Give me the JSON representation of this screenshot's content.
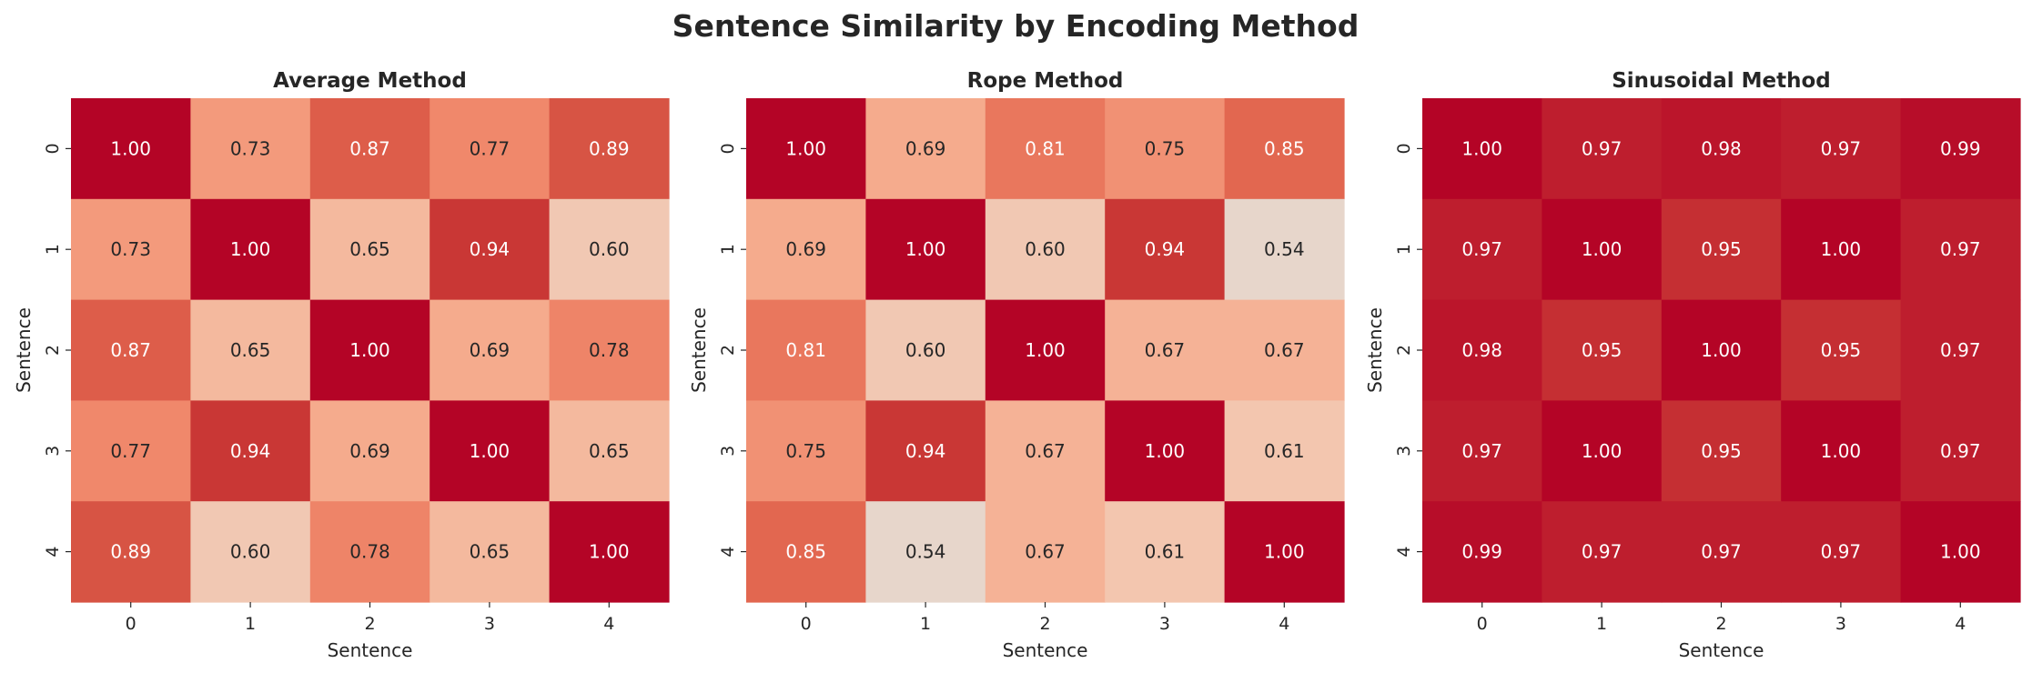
{
  "title": "Sentence Similarity by Encoding Method",
  "chart_data": [
    {
      "type": "heatmap",
      "title": "Average Method",
      "xlabel": "Sentence",
      "ylabel": "Sentence",
      "x": [
        "0",
        "1",
        "2",
        "3",
        "4"
      ],
      "y": [
        "0",
        "1",
        "2",
        "3",
        "4"
      ],
      "values": [
        [
          1.0,
          0.73,
          0.87,
          0.77,
          0.89
        ],
        [
          0.73,
          1.0,
          0.65,
          0.94,
          0.6
        ],
        [
          0.87,
          0.65,
          1.0,
          0.69,
          0.78
        ],
        [
          0.77,
          0.94,
          0.69,
          1.0,
          0.65
        ],
        [
          0.89,
          0.6,
          0.78,
          0.65,
          1.0
        ]
      ],
      "colorbar": false
    },
    {
      "type": "heatmap",
      "title": "Rope Method",
      "xlabel": "Sentence",
      "ylabel": "Sentence",
      "x": [
        "0",
        "1",
        "2",
        "3",
        "4"
      ],
      "y": [
        "0",
        "1",
        "2",
        "3",
        "4"
      ],
      "values": [
        [
          1.0,
          0.69,
          0.81,
          0.75,
          0.85
        ],
        [
          0.69,
          1.0,
          0.6,
          0.94,
          0.54
        ],
        [
          0.81,
          0.6,
          1.0,
          0.67,
          0.67
        ],
        [
          0.75,
          0.94,
          0.67,
          1.0,
          0.61
        ],
        [
          0.85,
          0.54,
          0.67,
          0.61,
          1.0
        ]
      ],
      "colorbar": false
    },
    {
      "type": "heatmap",
      "title": "Sinusoidal Method",
      "xlabel": "Sentence",
      "ylabel": "Sentence",
      "x": [
        "0",
        "1",
        "2",
        "3",
        "4"
      ],
      "y": [
        "0",
        "1",
        "2",
        "3",
        "4"
      ],
      "values": [
        [
          1.0,
          0.97,
          0.98,
          0.97,
          0.99
        ],
        [
          0.97,
          1.0,
          0.95,
          1.0,
          0.97
        ],
        [
          0.98,
          0.95,
          1.0,
          0.95,
          0.97
        ],
        [
          0.97,
          1.0,
          0.95,
          1.0,
          0.97
        ],
        [
          0.99,
          0.97,
          0.97,
          0.97,
          1.0
        ]
      ],
      "colorbar": false
    }
  ],
  "colormap": {
    "name": "coolwarm",
    "vmin": 0.5,
    "vmax": 1.0,
    "low": "#dddcdc",
    "high": "#b40426"
  }
}
